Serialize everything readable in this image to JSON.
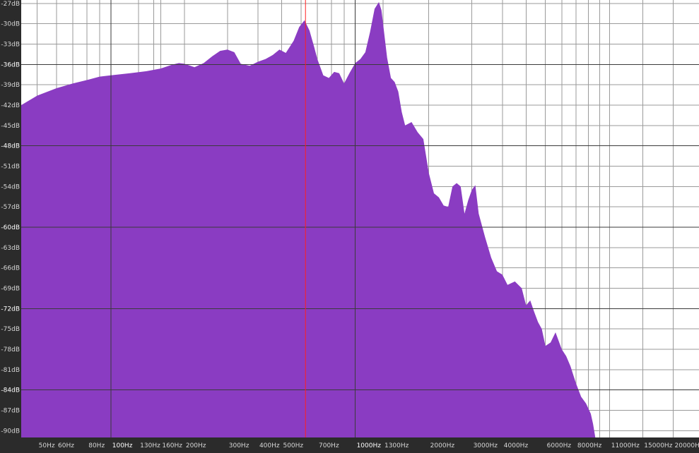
{
  "chart_data": {
    "type": "area",
    "title": "",
    "xlabel": "",
    "ylabel": "",
    "x_scale": "log",
    "xlim": [
      43,
      25500
    ],
    "ylim": [
      -91,
      -26.5
    ],
    "grid": true,
    "colors": {
      "fill": "#8a3cc2",
      "plot_bg": "#ffffff",
      "frame_bg": "#2b2b2b",
      "grid": "#9a9a9a",
      "grid_major": "#3a3a3a",
      "cursor": "#ff2020",
      "tick_text": "#d6d6d6"
    },
    "y_ticks": [
      {
        "value": -27,
        "label": "-27dB"
      },
      {
        "value": -30,
        "label": "-30dB"
      },
      {
        "value": -33,
        "label": "-33dB"
      },
      {
        "value": -36,
        "label": "-36dB",
        "major": true
      },
      {
        "value": -39,
        "label": "-39dB"
      },
      {
        "value": -42,
        "label": "-42dB"
      },
      {
        "value": -45,
        "label": "-45dB"
      },
      {
        "value": -48,
        "label": "-48dB",
        "major": true
      },
      {
        "value": -51,
        "label": "-51dB"
      },
      {
        "value": -54,
        "label": "-54dB"
      },
      {
        "value": -57,
        "label": "-57dB"
      },
      {
        "value": -60,
        "label": "-60dB",
        "major": true
      },
      {
        "value": -63,
        "label": "-63dB"
      },
      {
        "value": -66,
        "label": "-66dB"
      },
      {
        "value": -69,
        "label": "-69dB"
      },
      {
        "value": -72,
        "label": "-72dB",
        "major": true
      },
      {
        "value": -75,
        "label": "-75dB"
      },
      {
        "value": -78,
        "label": "-78dB"
      },
      {
        "value": -81,
        "label": "-81dB"
      },
      {
        "value": -84,
        "label": "-84dB",
        "major": true
      },
      {
        "value": -87,
        "label": "-87dB"
      },
      {
        "value": -90,
        "label": "-90dB"
      }
    ],
    "x_ticks": [
      {
        "value": 50,
        "label": "50Hz"
      },
      {
        "value": 60,
        "label": "60Hz"
      },
      {
        "value": 80,
        "label": "80Hz"
      },
      {
        "value": 100,
        "label": "100Hz",
        "major": true
      },
      {
        "value": 130,
        "label": "130Hz"
      },
      {
        "value": 160,
        "label": "160Hz"
      },
      {
        "value": 200,
        "label": "200Hz"
      },
      {
        "value": 300,
        "label": "300Hz"
      },
      {
        "value": 400,
        "label": "400Hz"
      },
      {
        "value": 500,
        "label": "500Hz"
      },
      {
        "value": 700,
        "label": "700Hz"
      },
      {
        "value": 1000,
        "label": "1000Hz",
        "major": true
      },
      {
        "value": 1300,
        "label": "1300Hz"
      },
      {
        "value": 2000,
        "label": "2000Hz"
      },
      {
        "value": 3000,
        "label": "3000Hz"
      },
      {
        "value": 4000,
        "label": "4000Hz"
      },
      {
        "value": 6000,
        "label": "6000Hz"
      },
      {
        "value": 8000,
        "label": "8000Hz"
      },
      {
        "value": 11000,
        "label": "11000Hz"
      },
      {
        "value": 15000,
        "label": "15000Hz"
      },
      {
        "value": 20000,
        "label": "20000Hz"
      }
    ],
    "x_minor_gridlines": [
      70,
      90,
      150,
      600,
      800,
      900,
      5000,
      7000,
      9000,
      10000
    ],
    "cursor_frequency": 626,
    "series": [
      {
        "x": [
          43,
          50,
          60,
          70,
          80,
          90,
          100,
          120,
          140,
          160,
          180,
          190,
          200,
          220,
          240,
          260,
          280,
          300,
          320,
          340,
          370,
          400,
          430,
          460,
          490,
          520,
          560,
          590,
          620,
          650,
          680,
          700,
          740,
          780,
          820,
          860,
          900,
          950,
          1000,
          1050,
          1100,
          1150,
          1200,
          1250,
          1280,
          1300,
          1350,
          1400,
          1450,
          1500,
          1550,
          1600,
          1700,
          1800,
          1900,
          2000,
          2100,
          2200,
          2300,
          2400,
          2500,
          2600,
          2700,
          2800,
          2900,
          3000,
          3100,
          3200,
          3400,
          3600,
          3800,
          4000,
          4200,
          4500,
          4800,
          5000,
          5200,
          5400,
          5600,
          5800,
          6000,
          6300,
          6600,
          7000,
          7300,
          7600,
          8000,
          8400,
          8800,
          9200,
          9400,
          9600
        ],
        "y": [
          -42,
          -40.6,
          -39.5,
          -38.8,
          -38.3,
          -37.8,
          -37.6,
          -37.3,
          -37.0,
          -36.6,
          -36.0,
          -35.8,
          -35.9,
          -36.4,
          -35.8,
          -34.8,
          -34.0,
          -33.8,
          -34.2,
          -35.9,
          -36.2,
          -35.6,
          -35.2,
          -34.6,
          -33.8,
          -34.3,
          -32.5,
          -30.5,
          -29.5,
          -31.0,
          -33.5,
          -35.2,
          -37.6,
          -38.0,
          -37.1,
          -37.3,
          -38.8,
          -37.2,
          -35.8,
          -35.2,
          -34.2,
          -31.2,
          -27.8,
          -26.8,
          -28.0,
          -30.0,
          -35.0,
          -38.0,
          -38.6,
          -40.0,
          -43.0,
          -45.0,
          -44.5,
          -46.0,
          -47.0,
          -52.0,
          -55.0,
          -55.6,
          -56.8,
          -57.0,
          -54.0,
          -53.5,
          -54.0,
          -58.0,
          -56.0,
          -54.5,
          -53.8,
          -58.0,
          -61.5,
          -64.5,
          -66.5,
          -67.0,
          -68.5,
          -68.0,
          -69.0,
          -71.5,
          -70.8,
          -72.5,
          -74.0,
          -75.0,
          -77.5,
          -77.0,
          -75.5,
          -78.0,
          -79.0,
          -80.5,
          -83.0,
          -85.0,
          -86.0,
          -87.5,
          -89.0,
          -91.0
        ]
      }
    ]
  }
}
